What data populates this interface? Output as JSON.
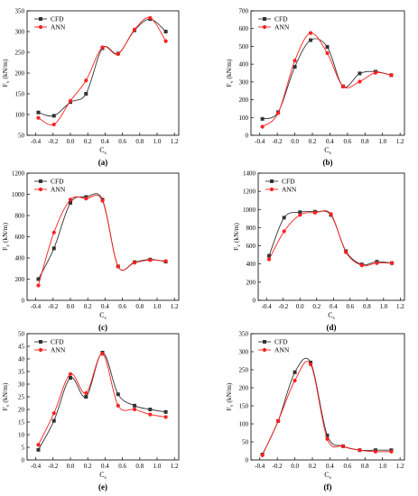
{
  "colors": {
    "cfd": "#333333",
    "ann": "#ff2020",
    "axis": "#000000"
  },
  "chart_data": [
    {
      "type": "line",
      "panel_label": "(a)",
      "xlabel": "C_s",
      "ylabel": "F_v (kN/m)",
      "xlim": [
        -0.5,
        1.25
      ],
      "ylim": [
        50,
        350
      ],
      "xticks": [
        -0.4,
        -0.2,
        0.0,
        0.2,
        0.4,
        0.6,
        0.8,
        1.0,
        1.2
      ],
      "xtick_labels": [
        "-0.4",
        "-0.2",
        "0.0",
        "0.2",
        "0.4",
        "0.6",
        "0.8",
        "1.0",
        "1.2"
      ],
      "yticks": [
        50,
        100,
        150,
        200,
        250,
        300,
        350
      ],
      "legend": "top-left",
      "series": [
        {
          "name": "CFD",
          "marker": "square",
          "x": [
            -0.37,
            -0.19,
            0.0,
            0.18,
            0.37,
            0.55,
            0.74,
            0.92,
            1.1
          ],
          "y": [
            105,
            97,
            130,
            150,
            260,
            247,
            303,
            330,
            300
          ]
        },
        {
          "name": "ANN",
          "marker": "circle",
          "x": [
            -0.37,
            -0.19,
            0.0,
            0.18,
            0.37,
            0.55,
            0.74,
            0.92,
            1.1
          ],
          "y": [
            92,
            76,
            133,
            182,
            262,
            246,
            305,
            333,
            277
          ]
        }
      ]
    },
    {
      "type": "line",
      "panel_label": "(b)",
      "xlabel": "C_s",
      "ylabel": "F_v (kN/m)",
      "xlim": [
        -0.5,
        1.25
      ],
      "ylim": [
        0,
        700
      ],
      "xticks": [
        -0.4,
        -0.2,
        0.0,
        0.2,
        0.4,
        0.6,
        0.8,
        1.0,
        1.2
      ],
      "xtick_labels": [
        "-0.4",
        "-0.2",
        "0.0",
        "0.2",
        "0.4",
        "0.6",
        "0.8",
        "1.0",
        "1.2"
      ],
      "yticks": [
        0,
        100,
        200,
        300,
        400,
        500,
        600,
        700
      ],
      "legend": "top-left",
      "series": [
        {
          "name": "CFD",
          "marker": "square",
          "x": [
            -0.37,
            -0.19,
            0.0,
            0.18,
            0.37,
            0.55,
            0.74,
            0.92,
            1.1
          ],
          "y": [
            92,
            130,
            385,
            535,
            497,
            275,
            348,
            358,
            338
          ]
        },
        {
          "name": "ANN",
          "marker": "circle",
          "x": [
            -0.37,
            -0.19,
            0.0,
            0.18,
            0.37,
            0.55,
            0.74,
            0.92,
            1.1
          ],
          "y": [
            48,
            125,
            420,
            575,
            462,
            275,
            302,
            352,
            338
          ]
        }
      ]
    },
    {
      "type": "line",
      "panel_label": "(c)",
      "xlabel": "C_s",
      "ylabel": "F_v (kN/m)",
      "xlim": [
        -0.5,
        1.25
      ],
      "ylim": [
        0,
        1200
      ],
      "xticks": [
        -0.4,
        -0.2,
        0.0,
        0.2,
        0.4,
        0.6,
        0.8,
        1.0,
        1.2
      ],
      "xtick_labels": [
        "-0.4",
        "-0.2",
        "0.0",
        "0.2",
        "0.4",
        "0.6",
        "0.8",
        "1.0",
        "1.2"
      ],
      "yticks": [
        0,
        200,
        400,
        600,
        800,
        1000,
        1200
      ],
      "legend": "top-left",
      "series": [
        {
          "name": "CFD",
          "marker": "square",
          "x": [
            -0.37,
            -0.19,
            0.0,
            0.18,
            0.37,
            0.55,
            0.74,
            0.92,
            1.1
          ],
          "y": [
            200,
            490,
            920,
            975,
            950,
            320,
            360,
            385,
            365
          ]
        },
        {
          "name": "ANN",
          "marker": "circle",
          "x": [
            -0.37,
            -0.19,
            0.0,
            0.18,
            0.37,
            0.55,
            0.74,
            0.92,
            1.1
          ],
          "y": [
            140,
            640,
            950,
            960,
            940,
            320,
            355,
            380,
            370
          ]
        }
      ]
    },
    {
      "type": "line",
      "panel_label": "(d)",
      "xlabel": "C_s",
      "ylabel": "F_v (kN/m)",
      "xlim": [
        -0.5,
        1.25
      ],
      "ylim": [
        0,
        1400
      ],
      "xticks": [
        -0.4,
        -0.2,
        0.0,
        0.2,
        0.4,
        0.6,
        0.8,
        1.0,
        1.2
      ],
      "xtick_labels": [
        "-0.4",
        "-0.2",
        "0.0",
        "0.2",
        "0.4",
        "0.6",
        "0.8",
        "1.0",
        "1.2"
      ],
      "yticks": [
        0,
        200,
        400,
        600,
        800,
        1000,
        1200,
        1400
      ],
      "legend": "top-left",
      "series": [
        {
          "name": "CFD",
          "marker": "square",
          "x": [
            -0.37,
            -0.19,
            0.0,
            0.18,
            0.37,
            0.55,
            0.74,
            0.92,
            1.1
          ],
          "y": [
            490,
            910,
            970,
            975,
            940,
            540,
            395,
            425,
            410
          ]
        },
        {
          "name": "ANN",
          "marker": "circle",
          "x": [
            -0.37,
            -0.19,
            0.0,
            0.18,
            0.37,
            0.55,
            0.74,
            0.92,
            1.1
          ],
          "y": [
            450,
            760,
            940,
            965,
            950,
            530,
            385,
            410,
            410
          ]
        }
      ]
    },
    {
      "type": "line",
      "panel_label": "(e)",
      "xlabel": "C_s",
      "ylabel": "F_v (kN/m)",
      "xlim": [
        -0.5,
        1.25
      ],
      "ylim": [
        0,
        50
      ],
      "xticks": [
        -0.4,
        -0.2,
        0.0,
        0.2,
        0.4,
        0.6,
        0.8,
        1.0,
        1.2
      ],
      "xtick_labels": [
        "-0.4",
        "-0.2",
        "0.0",
        "0.2",
        "0.4",
        "0.6",
        "0.8",
        "1.0",
        "1.2"
      ],
      "yticks": [
        0,
        5,
        10,
        15,
        20,
        25,
        30,
        35,
        40,
        45,
        50
      ],
      "legend": "top-left",
      "series": [
        {
          "name": "CFD",
          "marker": "square",
          "x": [
            -0.37,
            -0.19,
            0.0,
            0.18,
            0.37,
            0.55,
            0.74,
            0.92,
            1.1
          ],
          "y": [
            4,
            15.5,
            32.5,
            25,
            42.5,
            26,
            21.5,
            20,
            19
          ]
        },
        {
          "name": "ANN",
          "marker": "circle",
          "x": [
            -0.37,
            -0.19,
            0.0,
            0.18,
            0.37,
            0.55,
            0.74,
            0.92,
            1.1
          ],
          "y": [
            6,
            18.5,
            34,
            26.5,
            42,
            21.5,
            20,
            18,
            17
          ]
        }
      ]
    },
    {
      "type": "line",
      "panel_label": "(f)",
      "xlabel": "C_s",
      "ylabel": "F_v (kN/m)",
      "xlim": [
        -0.5,
        1.25
      ],
      "ylim": [
        0,
        350
      ],
      "xticks": [
        -0.4,
        -0.2,
        0.0,
        0.2,
        0.4,
        0.6,
        0.8,
        1.0,
        1.2
      ],
      "xtick_labels": [
        "-0.4",
        "-0.2",
        "0.0",
        "0.2",
        "0.4",
        "0.6",
        "0.8",
        "1.0",
        "1.2"
      ],
      "yticks": [
        0,
        50,
        100,
        150,
        200,
        250,
        300,
        350
      ],
      "legend": "top-left",
      "series": [
        {
          "name": "CFD",
          "marker": "square",
          "x": [
            -0.37,
            -0.19,
            0.0,
            0.18,
            0.37,
            0.55,
            0.74,
            0.92,
            1.1
          ],
          "y": [
            15,
            108,
            243,
            270,
            68,
            38,
            27,
            27,
            27
          ]
        },
        {
          "name": "ANN",
          "marker": "circle",
          "x": [
            -0.37,
            -0.19,
            0.0,
            0.18,
            0.37,
            0.55,
            0.74,
            0.92,
            1.1
          ],
          "y": [
            13,
            108,
            220,
            265,
            58,
            38,
            27,
            23,
            23
          ]
        }
      ]
    }
  ]
}
